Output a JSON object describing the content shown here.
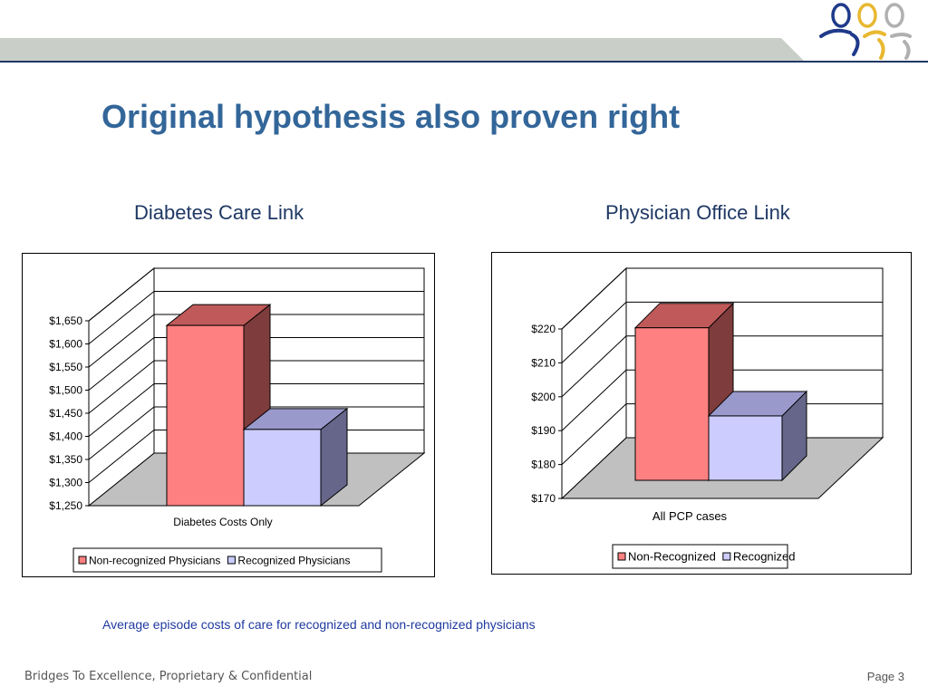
{
  "slide": {
    "title": "Original hypothesis also proven right",
    "caption": "Average episode costs of care for recognized and non-recognized physicians",
    "footer_left": "Bridges To Excellence, Proprietary & Confidential",
    "footer_right": "Page 3"
  },
  "colors": {
    "accent": "#336699",
    "header_band": "#c9cfc8",
    "header_line": "#1f3864",
    "non_recognized_front": "#ff8080",
    "non_recognized_top": "#c05a5a",
    "non_recognized_side": "#7f3c3c",
    "recognized_front": "#ccccff",
    "recognized_top": "#9999cc",
    "recognized_side": "#66668a",
    "floor": "#c0c0c0"
  },
  "logo": {
    "icon": "people-figures-logo"
  },
  "chart_data": [
    {
      "type": "bar",
      "title": "Diabetes Care Link",
      "categories": [
        "Diabetes Costs Only"
      ],
      "series": [
        {
          "name": "Non-recognized Physicians",
          "values": [
            1640
          ]
        },
        {
          "name": "Recognized Physicians",
          "values": [
            1415
          ]
        }
      ],
      "ylim": [
        1250,
        1650
      ],
      "yticks": [
        "$1,250",
        "$1,300",
        "$1,350",
        "$1,400",
        "$1,450",
        "$1,500",
        "$1,550",
        "$1,600",
        "$1,650"
      ],
      "grid": true,
      "legend": "bottom",
      "style": "3d"
    },
    {
      "type": "bar",
      "title": "Physician Office Link",
      "categories": [
        "All PCP cases"
      ],
      "series": [
        {
          "name": "Non-Recognized",
          "values": [
            215
          ]
        },
        {
          "name": "Recognized",
          "values": [
            189
          ]
        }
      ],
      "ylim": [
        170,
        220
      ],
      "yticks": [
        "$170",
        "$180",
        "$190",
        "$200",
        "$210",
        "$220"
      ],
      "grid": true,
      "legend": "bottom",
      "style": "3d"
    }
  ]
}
